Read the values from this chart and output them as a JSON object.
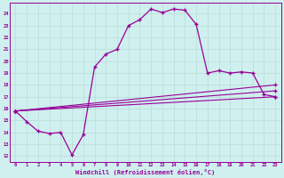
{
  "xlabel": "Windchill (Refroidissement éolien,°C)",
  "bg_color": "#cff0ee",
  "line_color": "#990099",
  "grid_color": "#b8ddd8",
  "x_ticks": [
    0,
    1,
    2,
    3,
    4,
    5,
    6,
    7,
    8,
    9,
    10,
    11,
    12,
    13,
    14,
    15,
    16,
    17,
    18,
    19,
    20,
    21,
    22,
    23
  ],
  "y_ticks": [
    12,
    13,
    14,
    15,
    16,
    17,
    18,
    19,
    20,
    21,
    22,
    23,
    24
  ],
  "xlim": [
    -0.5,
    23.5
  ],
  "ylim": [
    11.5,
    24.9
  ],
  "line1_x": [
    0,
    1,
    2,
    3,
    4,
    5,
    6,
    7,
    8,
    9,
    10,
    11,
    12,
    13,
    14,
    15,
    16,
    17,
    18,
    19,
    20,
    21,
    22,
    23
  ],
  "line1_y": [
    15.8,
    14.9,
    14.1,
    13.9,
    14.0,
    12.1,
    13.8,
    19.5,
    20.6,
    21.0,
    23.0,
    23.5,
    24.4,
    24.1,
    24.4,
    24.3,
    23.1,
    19.0,
    19.2,
    19.0,
    19.1,
    19.0,
    17.2,
    17.0
  ],
  "line2_x": [
    0,
    23
  ],
  "line2_y": [
    15.8,
    17.0
  ],
  "line3_x": [
    0,
    23
  ],
  "line3_y": [
    15.8,
    17.5
  ],
  "line4_x": [
    0,
    23
  ],
  "line4_y": [
    15.8,
    18.0
  ]
}
